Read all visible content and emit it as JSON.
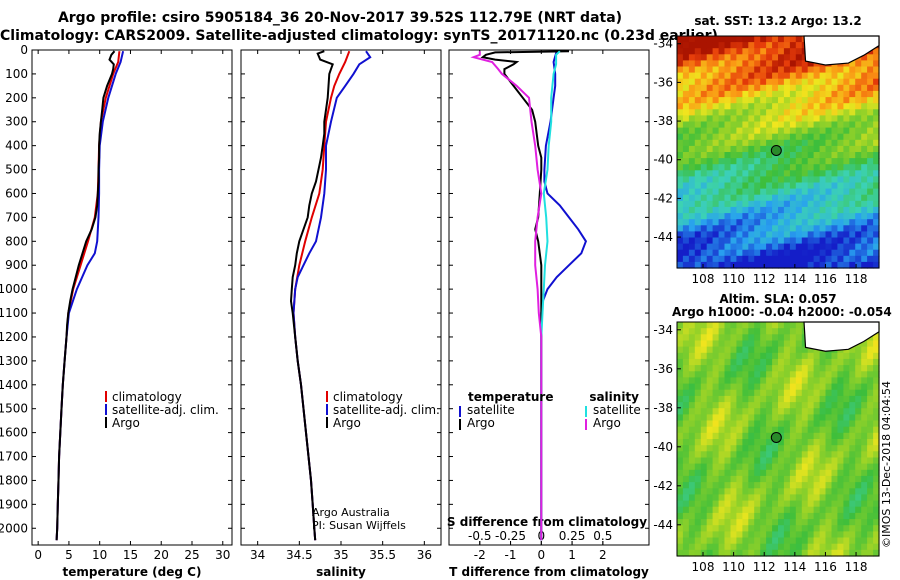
{
  "header": {
    "title_line1": "Argo profile: csiro 5905184_36 20-Nov-2017 39.52S 112.79E (NRT data)",
    "title_line2": "Climatology: CARS2009. Satellite-adjusted climatology: synTS_20171120.nc (0.23d earlier)"
  },
  "credit": "©IMOS 13-Dec-2018 04:04:54",
  "colors": {
    "climatology": "#e00000",
    "satellite": "#1010d0",
    "argo": "#000000",
    "sat_salinity": "#20e0e0",
    "argo_salinity": "#e020e0",
    "map_marker": "#2a8a2a"
  },
  "chart_data": [
    {
      "type": "line",
      "xlabel": "temperature (deg C)",
      "ylabel": "",
      "xlim": [
        -1,
        31.5
      ],
      "ylim": [
        2070,
        0
      ],
      "xticks": [
        0,
        5,
        10,
        15,
        20,
        25,
        30
      ],
      "yticks": [
        0,
        100,
        200,
        300,
        400,
        500,
        600,
        700,
        800,
        900,
        1000,
        1100,
        1200,
        1300,
        1400,
        1500,
        1600,
        1700,
        1800,
        1900,
        2000
      ],
      "legend": [
        "climatology",
        "satellite-adj. clim.",
        "Argo"
      ],
      "legend_position": "lower-right",
      "series": [
        {
          "name": "climatology",
          "depth": [
            5,
            50,
            100,
            200,
            300,
            400,
            500,
            600,
            700,
            800,
            900,
            1000,
            1100,
            1200,
            1300,
            1400,
            1500,
            1600,
            1700,
            1800,
            1900,
            2000,
            2050
          ],
          "values": [
            13.2,
            13.0,
            12.2,
            11.0,
            10.2,
            9.9,
            9.8,
            9.7,
            9.2,
            8.1,
            6.9,
            5.7,
            4.9,
            4.6,
            4.3,
            4.0,
            3.8,
            3.6,
            3.4,
            3.3,
            3.2,
            3.1,
            3.0
          ]
        },
        {
          "name": "satellite-adj. clim.",
          "depth": [
            5,
            50,
            100,
            200,
            300,
            400,
            500,
            600,
            700,
            800,
            850,
            900,
            1000,
            1100,
            1200,
            1300,
            1400,
            1500,
            1600,
            1700,
            1800,
            1900,
            2000,
            2050
          ],
          "values": [
            13.8,
            13.4,
            12.6,
            11.4,
            10.5,
            10.0,
            9.9,
            9.9,
            9.8,
            9.6,
            9.2,
            8.0,
            6.3,
            5.0,
            4.6,
            4.3,
            4.0,
            3.8,
            3.6,
            3.4,
            3.3,
            3.2,
            3.1,
            3.0
          ]
        },
        {
          "name": "Argo",
          "depth": [
            5,
            20,
            40,
            60,
            80,
            100,
            150,
            200,
            250,
            300,
            350,
            400,
            450,
            500,
            550,
            600,
            650,
            700,
            750,
            800,
            850,
            900,
            950,
            1000,
            1050,
            1100,
            1150,
            1200,
            1300,
            1400,
            1500,
            1600,
            1700,
            1800,
            1900,
            2000,
            2050
          ],
          "values": [
            12.4,
            11.9,
            11.6,
            12.3,
            12.2,
            12.0,
            11.2,
            10.6,
            10.4,
            10.2,
            10.0,
            9.9,
            9.9,
            9.8,
            9.8,
            9.7,
            9.6,
            9.3,
            8.7,
            7.8,
            7.2,
            6.6,
            6.1,
            5.6,
            5.2,
            4.9,
            4.7,
            4.6,
            4.3,
            4.0,
            3.8,
            3.6,
            3.4,
            3.3,
            3.2,
            3.1,
            3.0
          ]
        }
      ]
    },
    {
      "type": "line",
      "xlabel": "salinity",
      "ylabel": "",
      "xlim": [
        33.8,
        36.2
      ],
      "ylim": [
        2070,
        0
      ],
      "xticks": [
        34,
        34.5,
        35,
        35.5,
        36
      ],
      "legend": [
        "climatology",
        "satellite-adj. clim.",
        "Argo"
      ],
      "legend_position": "lower-right",
      "annotation": [
        "Argo Australia",
        "PI: Susan Wijffels"
      ],
      "series": [
        {
          "name": "climatology",
          "depth": [
            5,
            50,
            100,
            150,
            200,
            300,
            400,
            500,
            600,
            700,
            800,
            900,
            1000,
            1100,
            1200,
            1300,
            1400,
            1500,
            1600,
            1700,
            1800,
            1900,
            2000,
            2050
          ],
          "values": [
            35.1,
            35.05,
            34.98,
            34.92,
            34.88,
            34.82,
            34.8,
            34.78,
            34.74,
            34.65,
            34.57,
            34.5,
            34.45,
            34.43,
            34.45,
            34.48,
            34.52,
            34.55,
            34.58,
            34.61,
            34.64,
            34.66,
            34.68,
            34.69
          ]
        },
        {
          "name": "satellite-adj. clim.",
          "depth": [
            5,
            30,
            60,
            100,
            150,
            200,
            300,
            400,
            500,
            600,
            700,
            800,
            850,
            900,
            950,
            1000,
            1100,
            1200,
            1300,
            1400,
            1500,
            1600,
            1700,
            1800,
            1900,
            2000,
            2050
          ],
          "values": [
            35.3,
            35.35,
            35.22,
            35.15,
            35.05,
            34.95,
            34.88,
            34.82,
            34.82,
            34.8,
            34.76,
            34.7,
            34.62,
            34.55,
            34.48,
            34.45,
            34.43,
            34.45,
            34.48,
            34.52,
            34.55,
            34.58,
            34.61,
            34.64,
            34.66,
            34.68,
            34.69
          ]
        },
        {
          "name": "Argo",
          "depth": [
            5,
            15,
            40,
            60,
            80,
            100,
            150,
            200,
            250,
            300,
            350,
            400,
            450,
            500,
            550,
            600,
            650,
            700,
            750,
            800,
            850,
            900,
            950,
            1000,
            1050,
            1100,
            1200,
            1300,
            1400,
            1500,
            1600,
            1700,
            1800,
            1900,
            2000,
            2050
          ],
          "values": [
            34.8,
            34.72,
            34.75,
            34.9,
            34.88,
            34.86,
            34.85,
            34.84,
            34.82,
            34.8,
            34.8,
            34.78,
            34.76,
            34.73,
            34.7,
            34.65,
            34.62,
            34.6,
            34.55,
            34.5,
            34.47,
            34.45,
            34.42,
            34.41,
            34.4,
            34.42,
            34.45,
            34.48,
            34.52,
            34.55,
            34.58,
            34.61,
            34.64,
            34.66,
            34.68,
            34.69
          ]
        }
      ]
    },
    {
      "type": "line",
      "xlabel": "T difference from climatology",
      "ylabel": "",
      "xlim": [
        -3,
        3.5
      ],
      "ylim": [
        2070,
        0
      ],
      "xticks": [
        -2,
        -1,
        0,
        1,
        2
      ],
      "secondary_xlabel": "S difference from climatology",
      "secondary_xticks": [
        -0.5,
        -0.25,
        0,
        0.25,
        0.5
      ],
      "secondary_xtick_labels": [
        "-0.5",
        "-0.25",
        "0",
        "0.25",
        "0.5"
      ],
      "legend_headers": [
        "temperature",
        "salinity"
      ],
      "legend": [
        "satellite",
        "Argo",
        "satellite",
        "Argo"
      ],
      "legend_position": "lower-center",
      "series": [
        {
          "name": "satellite",
          "depth": [
            5,
            50,
            100,
            150,
            200,
            300,
            400,
            500,
            550,
            600,
            650,
            700,
            750,
            800,
            850,
            900,
            950,
            1000,
            1050,
            1100,
            1200,
            1400,
            1600,
            1800,
            2000,
            2050
          ],
          "values": [
            0.5,
            0.4,
            0.45,
            0.45,
            0.4,
            0.3,
            0.15,
            0.1,
            0.1,
            0.2,
            0.6,
            0.9,
            1.2,
            1.45,
            1.3,
            0.9,
            0.5,
            0.2,
            0.05,
            0,
            0,
            0,
            0,
            0,
            0,
            0
          ]
        },
        {
          "name": "Argo",
          "depth": [
            5,
            10,
            20,
            30,
            40,
            50,
            60,
            80,
            100,
            150,
            200,
            250,
            300,
            350,
            400,
            450,
            500,
            600,
            700,
            750,
            800,
            900,
            1000,
            1100,
            1200,
            1400,
            1600,
            1800,
            2000,
            2050
          ],
          "values": [
            0.9,
            -1.5,
            -1.8,
            -1.9,
            -1.5,
            -0.8,
            -0.9,
            -1.2,
            -1.2,
            -0.9,
            -0.6,
            -0.3,
            -0.2,
            -0.15,
            -0.1,
            0,
            0,
            -0.05,
            -0.1,
            -0.2,
            -0.1,
            0,
            0,
            0,
            0,
            0,
            0,
            0,
            0,
            0
          ]
        },
        {
          "name": "satellite",
          "depth": [
            5,
            20,
            60,
            100,
            200,
            300,
            400,
            500,
            600,
            700,
            800,
            900,
            1000,
            1100,
            1200,
            1400,
            1600,
            1800,
            2000,
            2050
          ],
          "values": [
            0.15,
            0.12,
            0.12,
            0.1,
            0.08,
            0.08,
            0.06,
            0.05,
            0.02,
            0.04,
            0.05,
            0.03,
            0.02,
            0.01,
            0,
            0,
            0,
            0,
            0,
            0
          ]
        },
        {
          "name": "Argo",
          "depth": [
            5,
            20,
            30,
            50,
            80,
            100,
            150,
            200,
            300,
            400,
            500,
            600,
            700,
            800,
            900,
            1000,
            1100,
            1200,
            1400,
            1600,
            1800,
            2000,
            2050
          ],
          "values": [
            -0.5,
            -0.5,
            -0.55,
            -0.4,
            -0.35,
            -0.32,
            -0.2,
            -0.1,
            -0.08,
            -0.05,
            -0.03,
            0,
            -0.03,
            -0.05,
            -0.05,
            -0.03,
            -0.02,
            0,
            0,
            0,
            0,
            0,
            0
          ]
        }
      ]
    }
  ],
  "maps": [
    {
      "title": "sat.  SST: 13.2 Argo: 13.2",
      "xticks": [
        "108",
        "110",
        "112",
        "114",
        "116",
        "118"
      ],
      "yticks": [
        "-34",
        "-36",
        "-38",
        "-40",
        "-42",
        "-44"
      ],
      "lon_range": [
        106.3,
        119.5
      ],
      "lat_range": [
        -45.6,
        -33.6
      ],
      "argo_position": [
        112.79,
        -39.52
      ]
    },
    {
      "title_line1": "Altim. SLA: 0.057",
      "title_line2": "Argo h1000: -0.04 h2000: -0.054",
      "xticks": [
        "108",
        "110",
        "112",
        "114",
        "116",
        "118"
      ],
      "yticks": [
        "-34",
        "-36",
        "-38",
        "-40",
        "-42",
        "-44"
      ],
      "lon_range": [
        106.3,
        119.5
      ],
      "lat_range": [
        -45.6,
        -33.6
      ],
      "argo_position": [
        112.79,
        -39.52
      ]
    }
  ]
}
